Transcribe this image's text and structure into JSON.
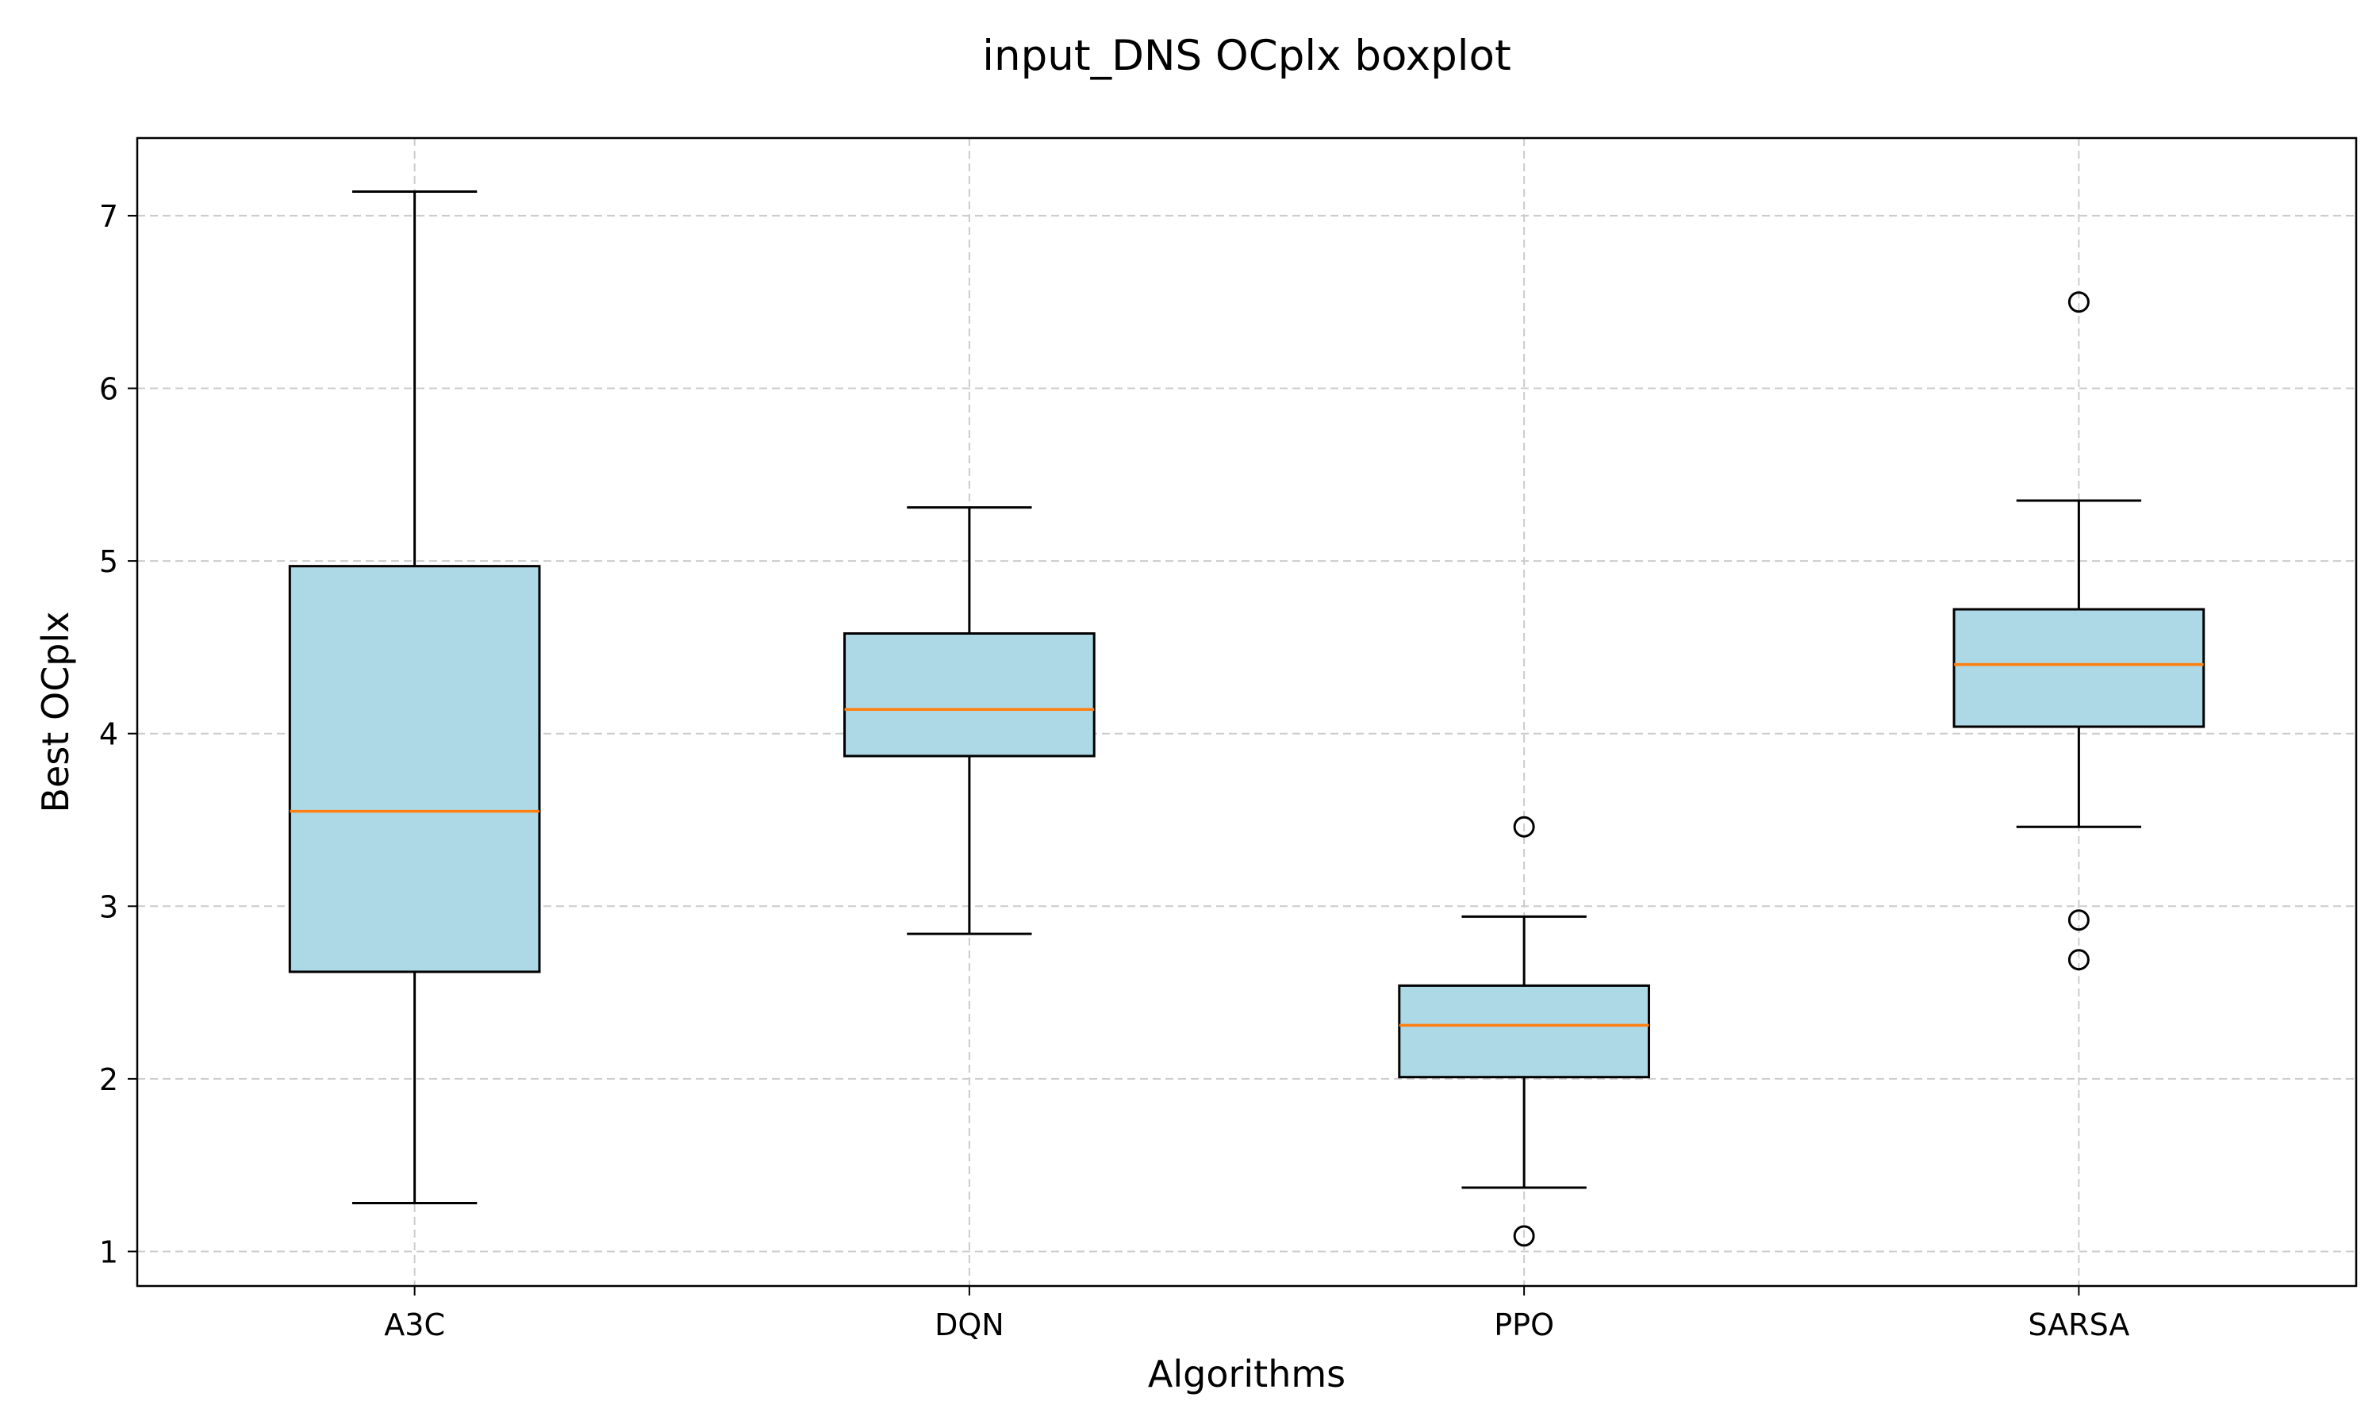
{
  "chart_data": {
    "type": "boxplot",
    "title": "input_DNS OCplx boxplot",
    "xlabel": "Algorithms",
    "ylabel": "Best OCplx",
    "ylim": [
      0.8,
      7.45
    ],
    "yticks": [
      1,
      2,
      3,
      4,
      5,
      6,
      7
    ],
    "grid": true,
    "categories": [
      "A3C",
      "DQN",
      "PPO",
      "SARSA"
    ],
    "boxes": [
      {
        "category": "A3C",
        "whisker_low": 1.28,
        "q1": 2.62,
        "median": 3.55,
        "q3": 4.97,
        "whisker_high": 7.14,
        "outliers": []
      },
      {
        "category": "DQN",
        "whisker_low": 2.84,
        "q1": 3.87,
        "median": 4.14,
        "q3": 4.58,
        "whisker_high": 5.31,
        "outliers": []
      },
      {
        "category": "PPO",
        "whisker_low": 1.37,
        "q1": 2.01,
        "median": 2.31,
        "q3": 2.54,
        "whisker_high": 2.94,
        "outliers": [
          3.46,
          1.09
        ]
      },
      {
        "category": "SARSA",
        "whisker_low": 3.46,
        "q1": 4.04,
        "median": 4.4,
        "q3": 4.72,
        "whisker_high": 5.35,
        "outliers": [
          6.5,
          2.92,
          2.69
        ]
      }
    ],
    "colors": {
      "box_fill": "#add8e6",
      "box_edge": "#000000",
      "median": "#ff7f0e",
      "grid": "#cccccc",
      "axis": "#000000"
    }
  }
}
